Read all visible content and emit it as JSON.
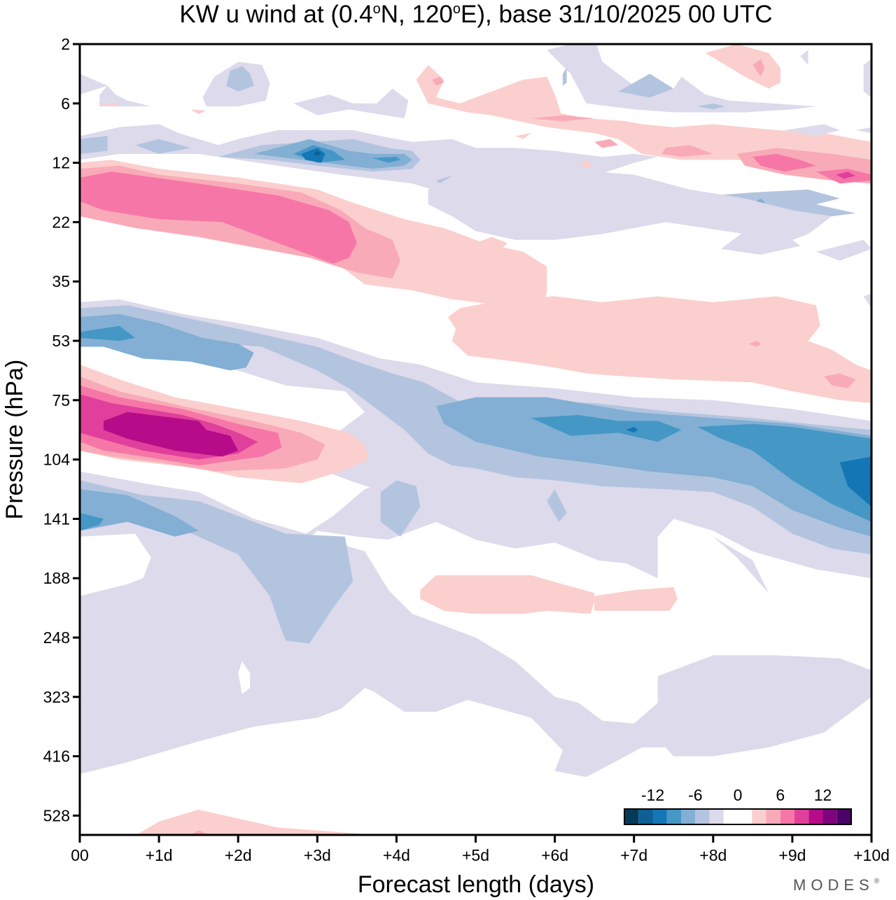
{
  "chart_data": {
    "type": "heatmap",
    "subtype": "filled-contour",
    "title": "KW u wind at (0.4°N, 120°E),  base 31/10/2025  00 UTC",
    "title_parts": {
      "prefix": "KW u wind at (0.4",
      "deg1": "o",
      "mid": "N, 120",
      "deg2": "o",
      "suffix": "E),  base 31/10/2025  00 UTC"
    },
    "xlabel": "Forecast length (days)",
    "ylabel": "Pressure (hPa)",
    "x_ticks": [
      "00",
      "+1d",
      "+2d",
      "+3d",
      "+4d",
      "+5d",
      "+6d",
      "+7d",
      "+8d",
      "+9d",
      "+10d"
    ],
    "xlim": [
      0,
      10
    ],
    "y_ticks": [
      "2",
      "6",
      "12",
      "22",
      "35",
      "53",
      "75",
      "104",
      "141",
      "188",
      "248",
      "323",
      "416",
      "528"
    ],
    "y_axis_note": "levels evenly spaced by index, top = 2 hPa, extends slightly below 528 hPa",
    "ylim_index": [
      0,
      13.3
    ],
    "colorbar": {
      "labels": [
        "-12",
        "-6",
        "0",
        "6",
        "12"
      ],
      "label_values": [
        -12,
        -6,
        0,
        6,
        12
      ],
      "levels": [
        -14,
        -12,
        -10,
        -8,
        -6,
        -4,
        -2,
        2,
        4,
        6,
        8,
        10,
        12,
        14
      ],
      "colors": [
        "#053b59",
        "#0d5f96",
        "#1476b5",
        "#4597c6",
        "#82afd3",
        "#b3c4df",
        "#dcdaeb",
        "#ffffff",
        "#fbcfcd",
        "#f9aab8",
        "#f677a7",
        "#e0409c",
        "#b60c89",
        "#7f037c",
        "#4a0268"
      ],
      "placement": "bottom-right inside plot"
    },
    "features": [
      {
        "name": "positive-max-low-strat",
        "x": [
          0.4,
          1.6
        ],
        "level_index": [
          6.2,
          6.8
        ],
        "peak_value": 12,
        "sign": "positive"
      },
      {
        "name": "positive-band-upper",
        "x": [
          0,
          3.2
        ],
        "level_index": [
          2.1,
          3.4
        ],
        "peak_value": 6,
        "sign": "positive"
      },
      {
        "name": "negative-band-35-53hPa",
        "x": [
          0,
          2.2
        ],
        "level_index": [
          4.3,
          4.9
        ],
        "peak_value": -8,
        "sign": "negative"
      },
      {
        "name": "negative-band-75-141hPa-late",
        "x": [
          4.5,
          10
        ],
        "level_index": [
          6.2,
          8.0
        ],
        "peak_value": -10,
        "sign": "negative"
      },
      {
        "name": "negative-core-12hPa-day3",
        "x": [
          2.8,
          3.2
        ],
        "level_index": [
          1.7,
          1.9
        ],
        "peak_value": -12,
        "sign": "negative"
      },
      {
        "name": "positive-12hPa-day9",
        "x": [
          8.5,
          10
        ],
        "level_index": [
          1.8,
          2.3
        ],
        "peak_value": 8,
        "sign": "positive"
      }
    ],
    "grid": false,
    "legend": "colorbar bottom-right"
  },
  "watermark": "MODES",
  "watermark_mark": "®"
}
